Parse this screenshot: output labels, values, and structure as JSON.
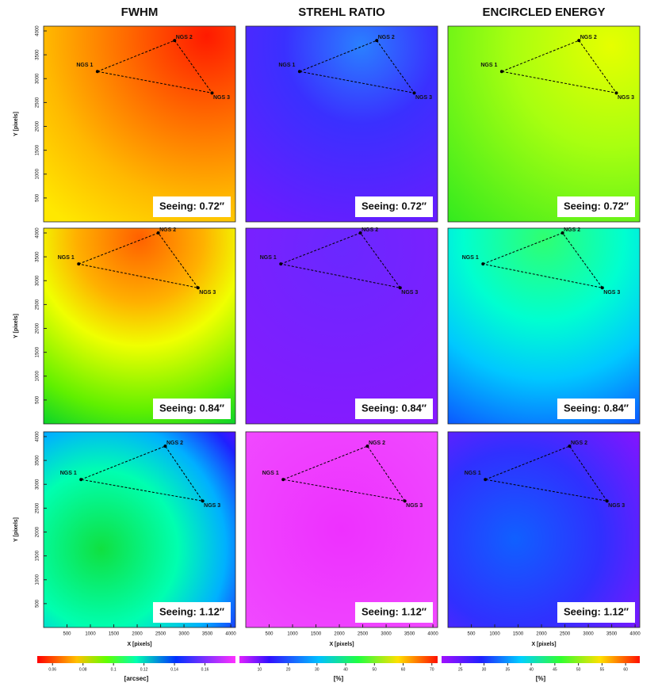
{
  "columns": [
    {
      "title": "FWHM"
    },
    {
      "title": "STREHL RATIO"
    },
    {
      "title": "ENCIRCLED ENERGY"
    }
  ],
  "rows": [
    {
      "seeing": "Seeing: 0.72″",
      "stars": [
        {
          "label": "NGS 1",
          "x": 1150,
          "y": 3150
        },
        {
          "label": "NGS 2",
          "x": 2800,
          "y": 3800
        },
        {
          "label": "NGS 3",
          "x": 3600,
          "y": 2700
        }
      ]
    },
    {
      "seeing": "Seeing: 0.84″",
      "stars": [
        {
          "label": "NGS 1",
          "x": 750,
          "y": 3350
        },
        {
          "label": "NGS 2",
          "x": 2450,
          "y": 4000
        },
        {
          "label": "NGS 3",
          "x": 3300,
          "y": 2850
        }
      ]
    },
    {
      "seeing": "Seeing: 1.12″",
      "stars": [
        {
          "label": "NGS 1",
          "x": 800,
          "y": 3100
        },
        {
          "label": "NGS 2",
          "x": 2600,
          "y": 3800
        },
        {
          "label": "NGS 3",
          "x": 3400,
          "y": 2650
        }
      ]
    }
  ],
  "axes": {
    "xlabel": "X [pixels]",
    "ylabel": "Y [pixels]",
    "xlim": [
      0,
      4100
    ],
    "ylim": [
      0,
      4100
    ],
    "xticks": [
      500,
      1000,
      1500,
      2000,
      2500,
      3000,
      3500,
      4000
    ],
    "yticks": [
      500,
      1000,
      1500,
      2000,
      2500,
      3000,
      3500,
      4000
    ]
  },
  "colorbars": [
    {
      "label": "[arcsec]",
      "lim": [
        0.05,
        0.18
      ],
      "ticks": [
        0.06,
        0.08,
        0.1,
        0.12,
        0.14,
        0.16
      ]
    },
    {
      "label": "[%]",
      "lim": [
        3,
        72
      ],
      "ticks": [
        10,
        20,
        30,
        40,
        50,
        60,
        70
      ]
    },
    {
      "label": "[%]",
      "lim": [
        21,
        63
      ],
      "ticks": [
        25,
        30,
        35,
        40,
        45,
        50,
        55,
        60
      ]
    }
  ]
}
